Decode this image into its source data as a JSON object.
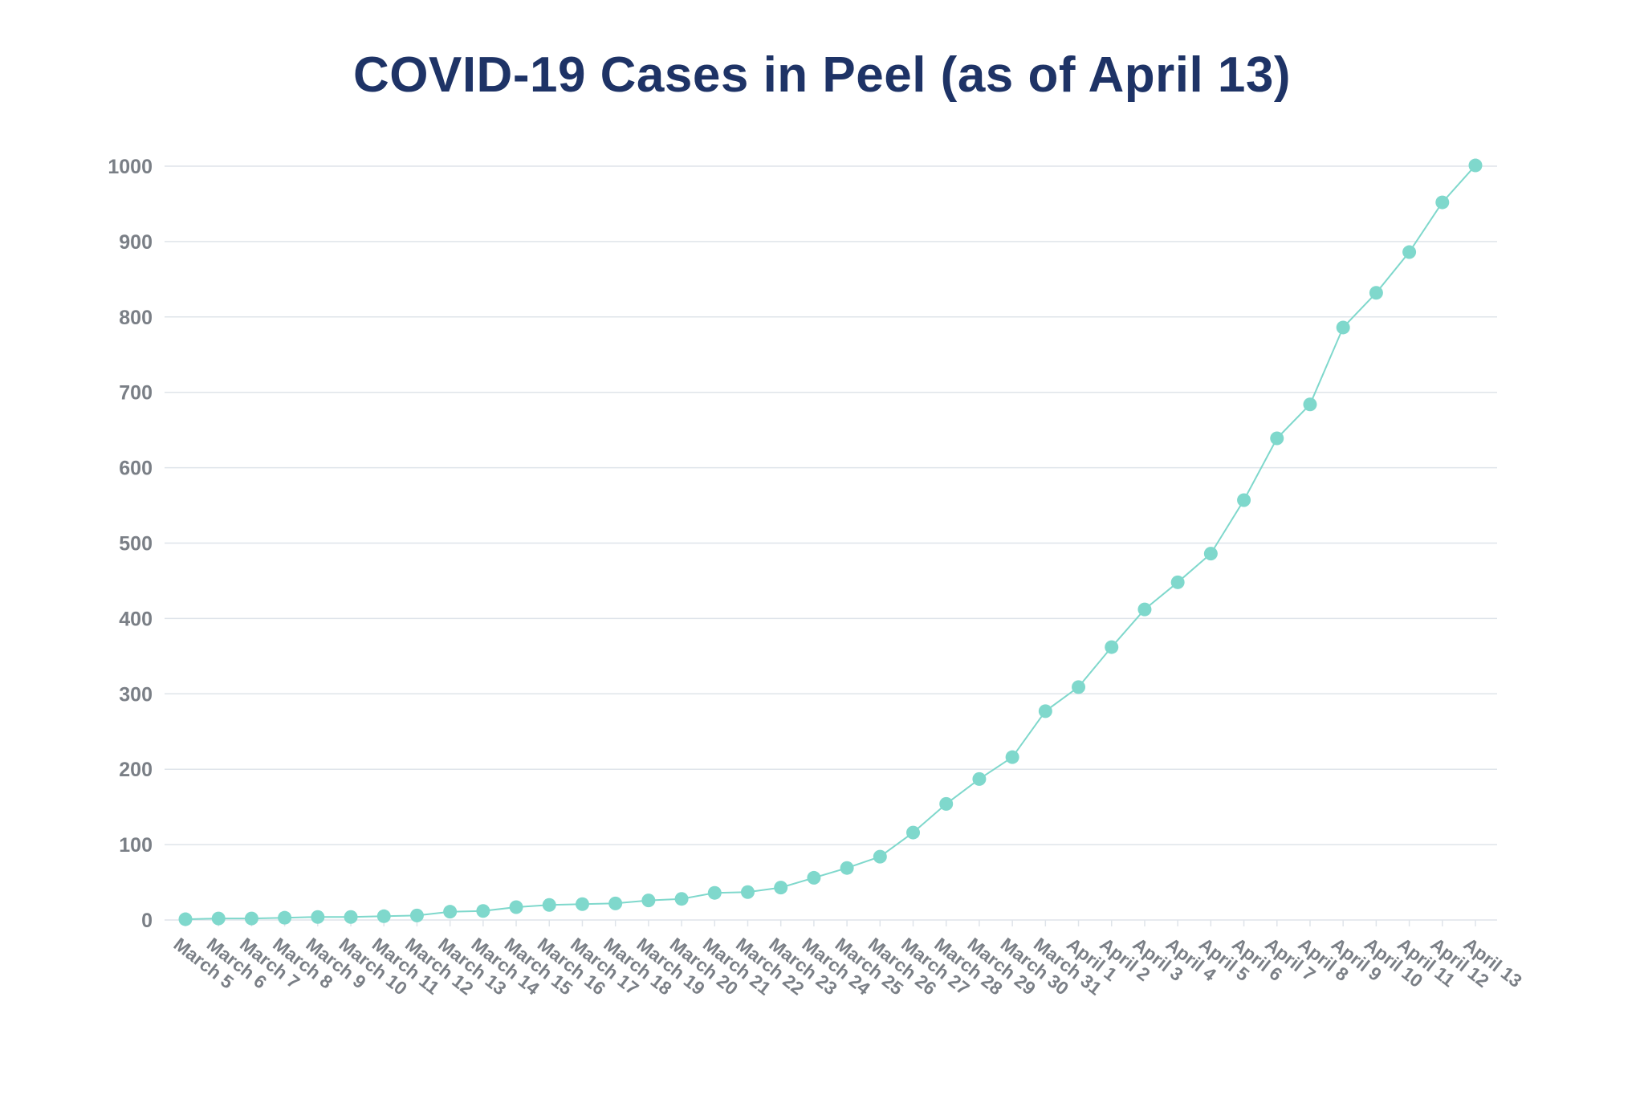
{
  "chart_data": {
    "type": "line",
    "title": "COVID-19 Cases in Peel (as of April 13)",
    "xlabel": "",
    "ylabel": "",
    "ylim": [
      0,
      1000
    ],
    "yticks": [
      0,
      100,
      200,
      300,
      400,
      500,
      600,
      700,
      800,
      900,
      1000
    ],
    "grid": true,
    "legend": "none",
    "colors": {
      "title": "#1e3366",
      "series": "#7fd8cc",
      "tick_text": "#7a7f86",
      "grid": "#dfe4ea"
    },
    "categories": [
      "March 5",
      "March 6",
      "March 7",
      "March 8",
      "March 9",
      "March 10",
      "March 11",
      "March 12",
      "March 13",
      "March 14",
      "March 15",
      "March 16",
      "March 17",
      "March 18",
      "March 19",
      "March 20",
      "March 21",
      "March 22",
      "March 23",
      "March 24",
      "March 25",
      "March 26",
      "March 27",
      "March 28",
      "March 29",
      "March 30",
      "March 31",
      "April 1",
      "April 2",
      "April 3",
      "April 4",
      "April 5",
      "April 6",
      "April 7",
      "April 8",
      "April 9",
      "April 10",
      "April 11",
      "April 12",
      "April 13"
    ],
    "series": [
      {
        "values": [
          1,
          2,
          2,
          3,
          4,
          4,
          5,
          6,
          11,
          12,
          17,
          20,
          21,
          22,
          26,
          28,
          36,
          37,
          43,
          56,
          69,
          84,
          116,
          154,
          187,
          216,
          277,
          309,
          362,
          412,
          448,
          486,
          557,
          639,
          684,
          786,
          832,
          886,
          952,
          1001
        ]
      }
    ]
  }
}
